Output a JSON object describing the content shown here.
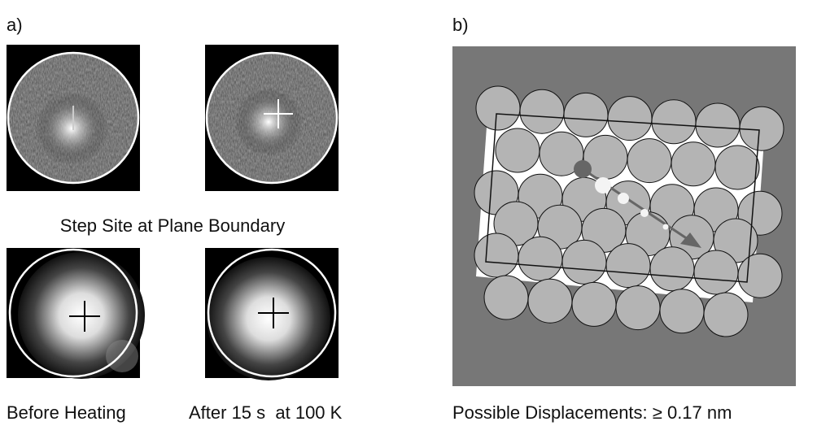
{
  "panel_a": {
    "label": "a)",
    "caption": "Step Site at Plane Boundary",
    "bottom_captions": [
      "Before Heating",
      "After 15 s  at 100 K"
    ]
  },
  "panel_b": {
    "label": "b)",
    "caption": "Possible Displacements: ≥ 0.17 nm"
  }
}
